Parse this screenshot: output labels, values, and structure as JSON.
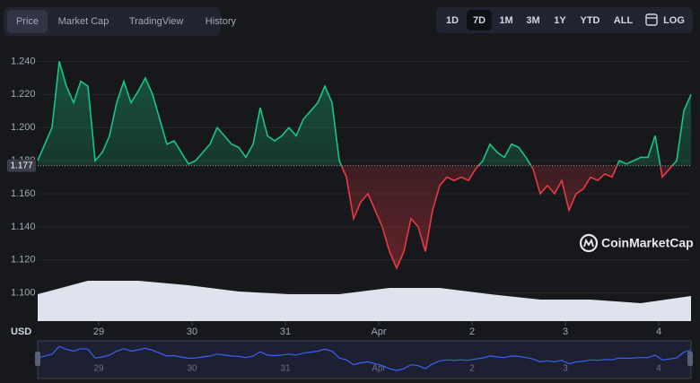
{
  "chart_data": {
    "type": "line",
    "tabs": [
      "Price",
      "Market Cap",
      "TradingView",
      "History"
    ],
    "active_tab": 0,
    "ranges": [
      "1D",
      "7D",
      "1M",
      "3M",
      "1Y",
      "YTD",
      "ALL"
    ],
    "active_range": 1,
    "log_button": "LOG",
    "y_label": "USD",
    "watermark": "CoinMarketCap",
    "baseline": 1.177,
    "up_color": "#16c784",
    "down_color": "#ea3943",
    "ylim": [
      1.083,
      1.25
    ],
    "yticks": [
      {
        "value": 1.1,
        "label": "1.100"
      },
      {
        "value": 1.12,
        "label": "1.120"
      },
      {
        "value": 1.14,
        "label": "1.140"
      },
      {
        "value": 1.16,
        "label": "1.160"
      },
      {
        "value": 1.18,
        "label": "1.180"
      },
      {
        "value": 1.2,
        "label": "1.200"
      },
      {
        "value": 1.22,
        "label": "1.220"
      },
      {
        "value": 1.24,
        "label": "1.240"
      }
    ],
    "grid": true,
    "xlim": [
      0,
      91
    ],
    "xticks": [
      {
        "value": 8.5,
        "label": "29"
      },
      {
        "value": 21.5,
        "label": "30"
      },
      {
        "value": 34.5,
        "label": "31"
      },
      {
        "value": 47.5,
        "label": "Apr"
      },
      {
        "value": 60.5,
        "label": "2"
      },
      {
        "value": 73.5,
        "label": "3"
      },
      {
        "value": 86.5,
        "label": "4"
      }
    ],
    "values": [
      1.18,
      1.19,
      1.2,
      1.24,
      1.225,
      1.215,
      1.228,
      1.225,
      1.18,
      1.185,
      1.195,
      1.215,
      1.228,
      1.215,
      1.222,
      1.23,
      1.22,
      1.205,
      1.19,
      1.192,
      1.185,
      1.178,
      1.18,
      1.185,
      1.19,
      1.2,
      1.195,
      1.19,
      1.188,
      1.182,
      1.19,
      1.212,
      1.195,
      1.192,
      1.195,
      1.2,
      1.195,
      1.205,
      1.21,
      1.215,
      1.225,
      1.215,
      1.18,
      1.17,
      1.145,
      1.155,
      1.16,
      1.15,
      1.14,
      1.125,
      1.115,
      1.125,
      1.145,
      1.14,
      1.125,
      1.15,
      1.165,
      1.17,
      1.168,
      1.17,
      1.168,
      1.175,
      1.18,
      1.19,
      1.185,
      1.182,
      1.19,
      1.188,
      1.182,
      1.175,
      1.16,
      1.165,
      1.16,
      1.168,
      1.15,
      1.16,
      1.163,
      1.17,
      1.168,
      1.172,
      1.17,
      1.18,
      1.178,
      1.18,
      1.182,
      1.182,
      1.195,
      1.17,
      1.175,
      1.18,
      1.21,
      1.22
    ],
    "volume": {
      "color": "#dfe3ee",
      "ylim": [
        0,
        100
      ],
      "values": [
        60,
        90,
        90,
        80,
        66,
        60,
        60,
        74,
        74,
        60,
        48,
        48,
        40,
        56
      ]
    },
    "navigator_color": "#3861fb"
  }
}
